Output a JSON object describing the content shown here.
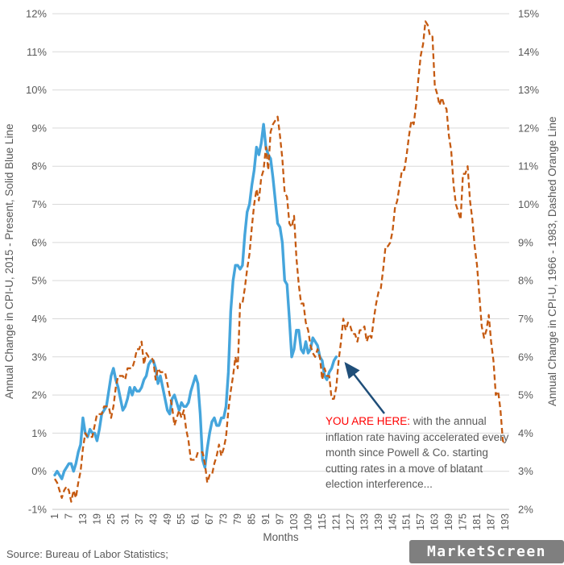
{
  "left_axis": {
    "title": "Annual Change in CPI-U, 2015 - Present, Solid Blue Line",
    "ticks": [
      "12%",
      "11%",
      "10%",
      "9%",
      "8%",
      "7%",
      "6%",
      "5%",
      "4%",
      "3%",
      "2%",
      "1%",
      "0%",
      "-1%"
    ],
    "max": 12,
    "min": -1
  },
  "right_axis": {
    "title": "Annual Change in CPI-U, 1966 - 1983, Dashed Orange Line",
    "ticks": [
      "15%",
      "14%",
      "13%",
      "12%",
      "11%",
      "10%",
      "9%",
      "8%",
      "7%",
      "6%",
      "5%",
      "4%",
      "3%",
      "2%"
    ],
    "max": 15,
    "min": 2
  },
  "x_axis": {
    "title": "Months",
    "ticks": [
      "1",
      "7",
      "13",
      "19",
      "25",
      "31",
      "37",
      "43",
      "49",
      "55",
      "61",
      "67",
      "73",
      "79",
      "85",
      "91",
      "97",
      "103",
      "109",
      "115",
      "121",
      "127",
      "133",
      "139",
      "145",
      "151",
      "157",
      "163",
      "169",
      "175",
      "181",
      "187",
      "193"
    ],
    "min": 1,
    "max": 193
  },
  "annotation": {
    "highlight": "YOU ARE HERE:",
    "body": " with the annual inflation rate having accelerated every month since Powell & Co. starting cutting rates in a move of blatant election interference..."
  },
  "source": "Source: Bureau of Labor Statistics;",
  "logo_text": "MarketScreen",
  "colors": {
    "blue_line": "#45A5DC",
    "orange_line": "#C55A11",
    "gridline": "#D9D9D9",
    "axis_line": "#C6C6C6",
    "tick_text": "#595959",
    "annotation_red": "#FF0000",
    "arrow": "#1F4E79",
    "logo_bg": "#7F7F7F"
  },
  "chart_data": {
    "type": "line",
    "xlabel": "Months",
    "x_tick_labels": [
      "1",
      "7",
      "13",
      "19",
      "25",
      "31",
      "37",
      "43",
      "49",
      "55",
      "61",
      "67",
      "73",
      "79",
      "85",
      "91",
      "97",
      "103",
      "109",
      "115",
      "121",
      "127",
      "133",
      "139",
      "145",
      "151",
      "157",
      "163",
      "169",
      "175",
      "181",
      "187",
      "193"
    ],
    "x_range": [
      1,
      193
    ],
    "left_ylim": [
      -1,
      12
    ],
    "right_ylim": [
      2,
      15
    ],
    "grid": true,
    "legend": "none (described in axis titles)",
    "series": [
      {
        "name": "Annual Change in CPI-U, 2015 - Present",
        "axis": "left",
        "style": "solid",
        "color": "#45A5DC",
        "x_start_month": 1,
        "values": [
          -0.1,
          0.0,
          -0.1,
          -0.2,
          0.0,
          0.1,
          0.2,
          0.2,
          0.0,
          0.2,
          0.5,
          0.7,
          1.4,
          1.0,
          0.9,
          1.1,
          1.0,
          1.0,
          0.8,
          1.1,
          1.5,
          1.6,
          1.7,
          2.1,
          2.5,
          2.7,
          2.4,
          2.2,
          1.9,
          1.6,
          1.7,
          1.9,
          2.2,
          2.0,
          2.2,
          2.1,
          2.1,
          2.2,
          2.4,
          2.5,
          2.8,
          2.9,
          2.9,
          2.7,
          2.3,
          2.5,
          2.2,
          1.9,
          1.6,
          1.5,
          1.9,
          2.0,
          1.8,
          1.6,
          1.8,
          1.7,
          1.7,
          1.8,
          2.1,
          2.3,
          2.5,
          2.3,
          1.5,
          0.3,
          0.1,
          0.6,
          1.0,
          1.3,
          1.4,
          1.2,
          1.2,
          1.4,
          1.4,
          1.7,
          2.6,
          4.2,
          5.0,
          5.4,
          5.4,
          5.3,
          5.4,
          6.2,
          6.8,
          7.0,
          7.5,
          7.9,
          8.5,
          8.3,
          8.6,
          9.1,
          8.5,
          8.3,
          8.2,
          7.7,
          7.1,
          6.5,
          6.4,
          6.0,
          5.0,
          4.9,
          4.0,
          3.0,
          3.2,
          3.7,
          3.7,
          3.2,
          3.1,
          3.4,
          3.1,
          3.2,
          3.5,
          3.4,
          3.3,
          3.0,
          2.9,
          2.5,
          2.4,
          2.6,
          2.7,
          2.9,
          3.0
        ]
      },
      {
        "name": "Annual Change in CPI-U, 1966 - 1983",
        "axis": "right",
        "style": "dashed",
        "color": "#C55A11",
        "x_start_month": 1,
        "values": [
          2.8,
          2.7,
          2.5,
          2.3,
          2.5,
          2.6,
          2.5,
          2.2,
          2.5,
          2.3,
          2.7,
          3.0,
          3.6,
          4.0,
          3.9,
          3.9,
          3.9,
          4.2,
          4.5,
          4.5,
          4.5,
          4.7,
          4.7,
          4.7,
          4.4,
          4.7,
          5.2,
          5.5,
          5.5,
          5.5,
          5.4,
          5.7,
          5.7,
          5.7,
          5.9,
          6.2,
          6.2,
          6.4,
          5.8,
          6.1,
          6.0,
          6.0,
          5.9,
          5.4,
          5.7,
          5.6,
          5.6,
          5.6,
          5.3,
          5.0,
          4.7,
          4.2,
          4.4,
          4.6,
          4.4,
          4.6,
          4.1,
          3.8,
          3.3,
          3.3,
          3.3,
          3.5,
          3.5,
          3.5,
          3.2,
          2.7,
          2.9,
          2.9,
          3.2,
          3.4,
          3.7,
          3.4,
          3.6,
          3.9,
          4.6,
          5.1,
          5.5,
          6.0,
          5.7,
          7.4,
          7.4,
          7.8,
          8.3,
          8.7,
          9.4,
          10.0,
          10.4,
          10.1,
          10.7,
          10.9,
          11.5,
          10.9,
          11.9,
          12.1,
          12.2,
          12.3,
          11.8,
          11.2,
          10.3,
          10.2,
          9.5,
          9.4,
          9.7,
          8.6,
          7.9,
          7.4,
          7.4,
          6.9,
          6.7,
          6.3,
          6.1,
          6.0,
          6.2,
          6.0,
          5.4,
          5.7,
          5.5,
          5.5,
          4.9,
          4.9,
          5.2,
          5.9,
          6.4,
          7.0,
          6.7,
          6.9,
          6.8,
          6.6,
          6.6,
          6.4,
          6.7,
          6.7,
          6.8,
          6.4,
          6.6,
          6.5,
          7.0,
          7.4,
          7.7,
          7.8,
          8.3,
          8.9,
          8.9,
          9.0,
          9.3,
          9.9,
          10.1,
          10.5,
          10.9,
          10.9,
          11.3,
          11.8,
          12.2,
          12.1,
          12.6,
          13.3,
          13.9,
          14.2,
          14.8,
          14.7,
          14.4,
          14.4,
          13.1,
          12.9,
          12.6,
          12.8,
          12.6,
          12.5,
          11.8,
          11.4,
          10.5,
          10.0,
          9.8,
          9.6,
          10.8,
          10.8,
          11.0,
          10.1,
          9.6,
          8.9,
          8.4,
          7.6,
          6.8,
          6.5,
          6.7,
          7.1,
          6.4,
          5.9,
          5.0,
          5.1,
          4.6,
          3.8,
          3.7
        ]
      }
    ]
  }
}
